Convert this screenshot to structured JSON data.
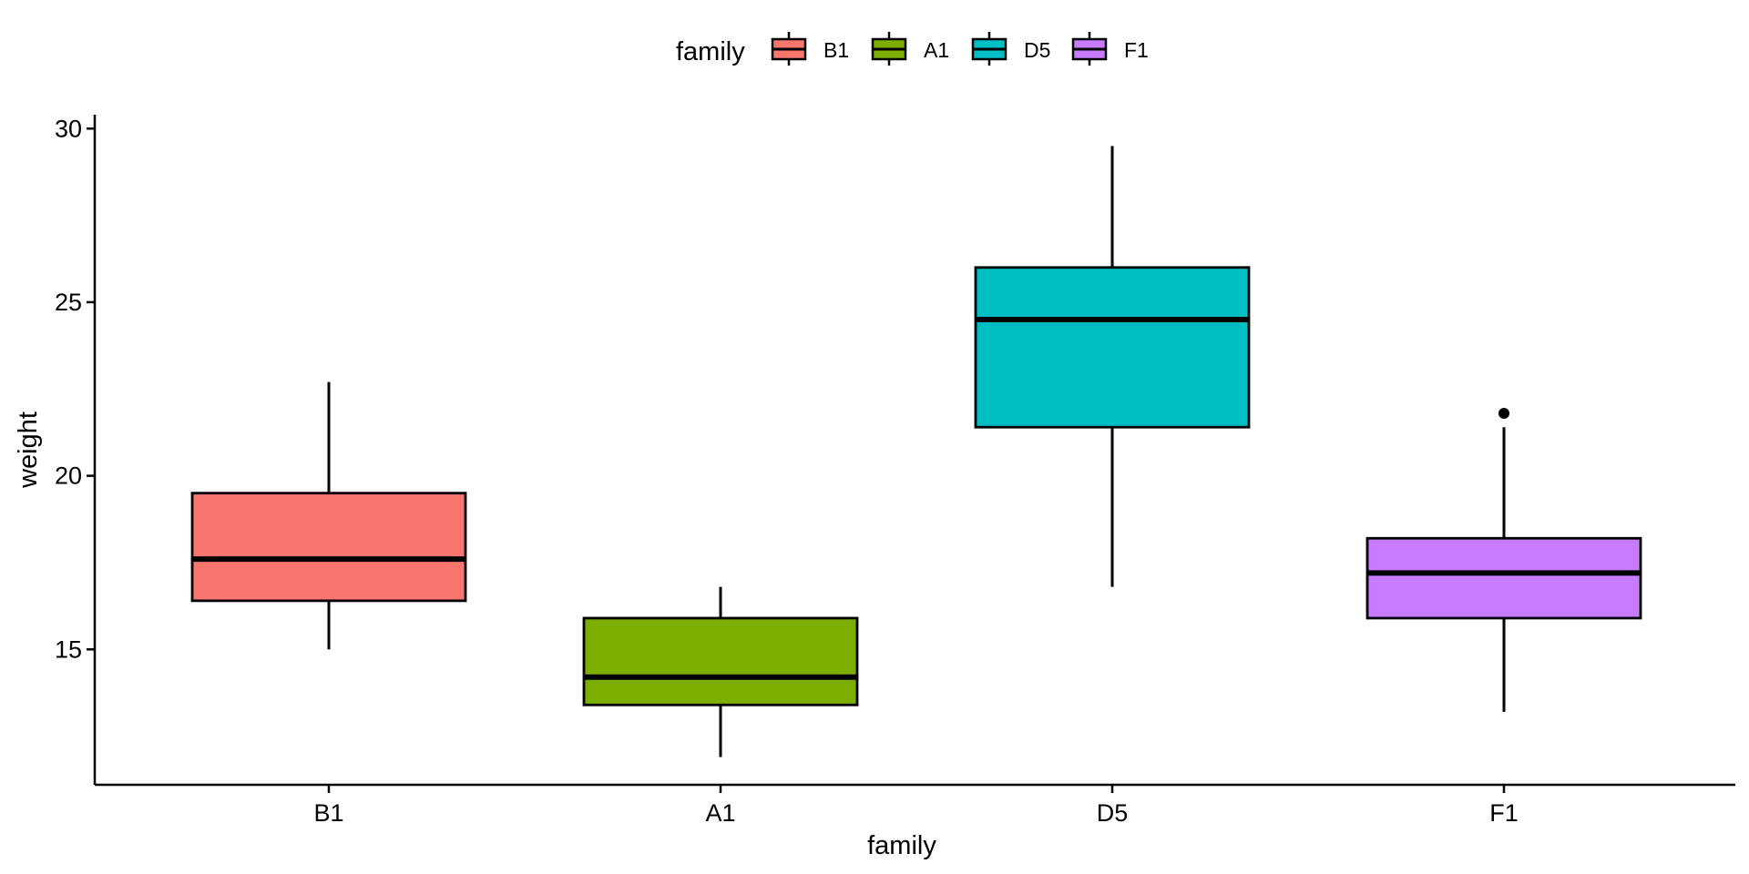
{
  "chart_data": {
    "type": "boxplot",
    "xlabel": "family",
    "ylabel": "weight",
    "ylim": [
      11.1,
      30.4
    ],
    "y_ticks": [
      "15",
      "20",
      "25",
      "30"
    ],
    "grid": false,
    "legend": {
      "title": "family",
      "placement": "top"
    },
    "categories": [
      "B1",
      "A1",
      "D5",
      "F1"
    ],
    "series": [
      {
        "name": "B1",
        "color": "#F8766D",
        "whisker_low": 15.0,
        "q1": 16.4,
        "median": 17.6,
        "q3": 19.5,
        "whisker_high": 22.7,
        "outliers": []
      },
      {
        "name": "A1",
        "color": "#7CAE00",
        "whisker_low": 11.9,
        "q1": 13.4,
        "median": 14.2,
        "q3": 15.9,
        "whisker_high": 16.8,
        "outliers": []
      },
      {
        "name": "D5",
        "color": "#00BFC4",
        "whisker_low": 16.8,
        "q1": 21.4,
        "median": 24.5,
        "q3": 26.0,
        "whisker_high": 29.5,
        "outliers": []
      },
      {
        "name": "F1",
        "color": "#C77CFF",
        "whisker_low": 13.2,
        "q1": 15.9,
        "median": 17.2,
        "q3": 18.2,
        "whisker_high": 21.4,
        "outliers": [
          21.8
        ]
      }
    ]
  }
}
